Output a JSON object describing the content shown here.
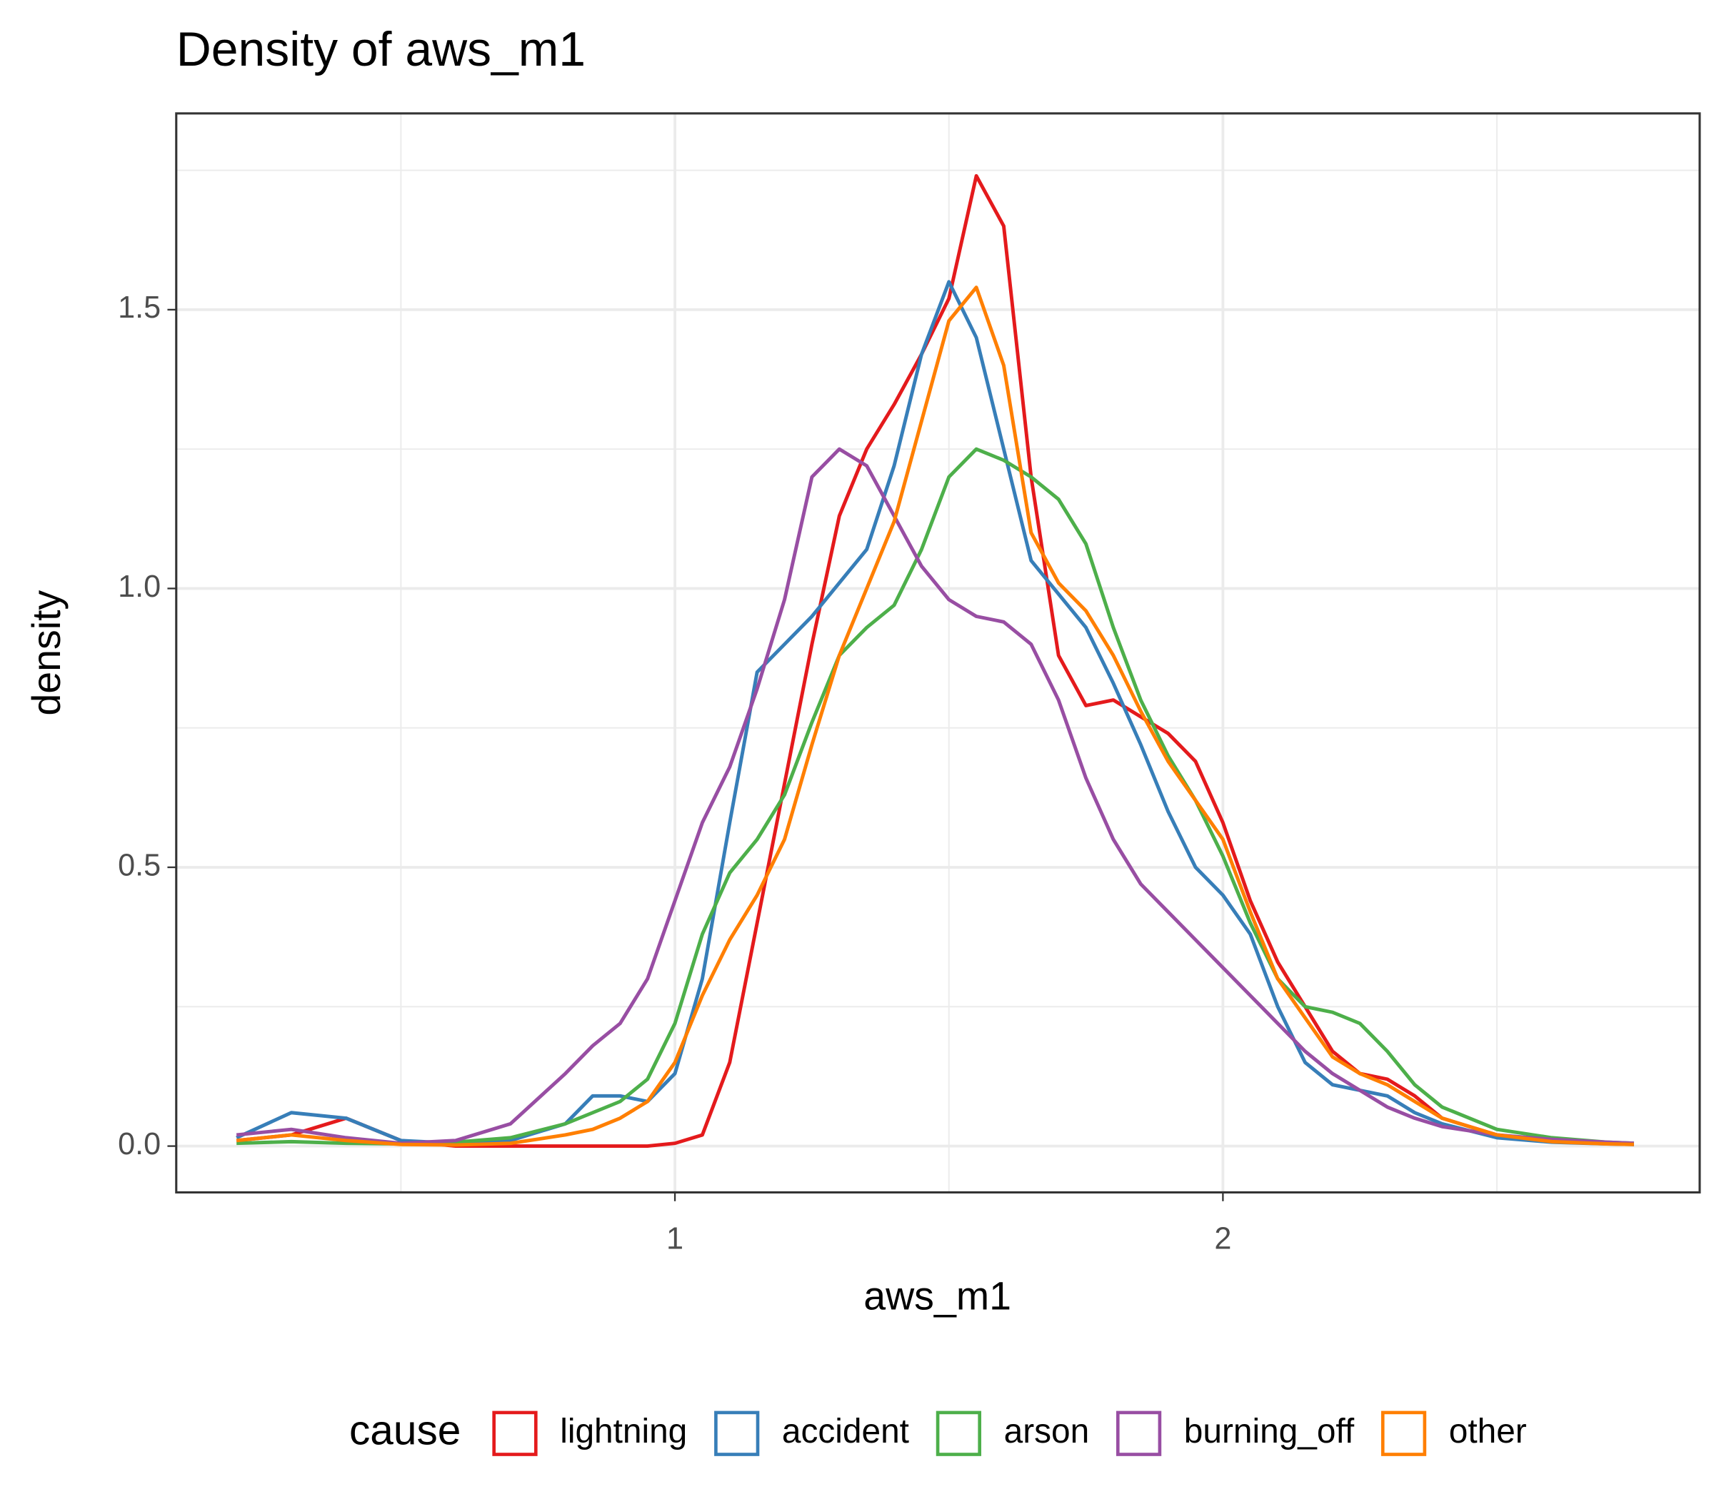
{
  "chart_data": {
    "type": "line",
    "title": "Density of aws_m1",
    "xlabel": "aws_m1",
    "ylabel": "density",
    "legend_title": "cause",
    "legend_position": "bottom",
    "grid": true,
    "minor_grid": true,
    "xlim": [
      0.09,
      2.87
    ],
    "ylim": [
      -0.083,
      1.852
    ],
    "xticks": [
      1,
      2
    ],
    "yticks": [
      {
        "value": 0,
        "label": "0.0"
      },
      {
        "value": 0.5,
        "label": "0.5"
      },
      {
        "value": 1,
        "label": "1.0"
      },
      {
        "value": 1.5,
        "label": "1.5"
      }
    ],
    "x": [
      0.2,
      0.3,
      0.4,
      0.5,
      0.6,
      0.7,
      0.8,
      0.85,
      0.9,
      0.95,
      1.0,
      1.05,
      1.1,
      1.15,
      1.2,
      1.25,
      1.3,
      1.35,
      1.4,
      1.45,
      1.5,
      1.55,
      1.6,
      1.65,
      1.7,
      1.75,
      1.8,
      1.85,
      1.9,
      1.95,
      2.0,
      2.05,
      2.1,
      2.15,
      2.2,
      2.25,
      2.3,
      2.35,
      2.4,
      2.5,
      2.6,
      2.7,
      2.75
    ],
    "series": [
      {
        "name": "lightning",
        "color": "#e41a1c",
        "values": [
          0.01,
          0.02,
          0.05,
          0.01,
          0,
          0,
          0,
          0,
          0,
          0,
          0.005,
          0.02,
          0.15,
          0.4,
          0.65,
          0.9,
          1.13,
          1.25,
          1.33,
          1.42,
          1.52,
          1.74,
          1.65,
          1.2,
          0.88,
          0.79,
          0.8,
          0.77,
          0.74,
          0.69,
          0.58,
          0.44,
          0.33,
          0.25,
          0.17,
          0.13,
          0.12,
          0.09,
          0.05,
          0.02,
          0.01,
          0.005,
          0.003
        ]
      },
      {
        "name": "accident",
        "color": "#377eb8",
        "values": [
          0.015,
          0.06,
          0.05,
          0.01,
          0.005,
          0.01,
          0.04,
          0.09,
          0.09,
          0.08,
          0.13,
          0.3,
          0.58,
          0.85,
          0.9,
          0.95,
          1.01,
          1.07,
          1.22,
          1.42,
          1.55,
          1.45,
          1.25,
          1.05,
          0.99,
          0.93,
          0.83,
          0.72,
          0.6,
          0.5,
          0.45,
          0.38,
          0.25,
          0.15,
          0.11,
          0.1,
          0.09,
          0.06,
          0.04,
          0.015,
          0.007,
          0.004,
          0.003
        ]
      },
      {
        "name": "arson",
        "color": "#4daf4a",
        "values": [
          0.005,
          0.008,
          0.005,
          0.004,
          0.007,
          0.015,
          0.04,
          0.06,
          0.08,
          0.12,
          0.22,
          0.38,
          0.49,
          0.55,
          0.63,
          0.76,
          0.88,
          0.93,
          0.97,
          1.07,
          1.2,
          1.25,
          1.23,
          1.2,
          1.16,
          1.08,
          0.93,
          0.8,
          0.7,
          0.62,
          0.52,
          0.4,
          0.3,
          0.25,
          0.24,
          0.22,
          0.17,
          0.11,
          0.07,
          0.03,
          0.015,
          0.007,
          0.005
        ]
      },
      {
        "name": "burning_off",
        "color": "#984ea3",
        "values": [
          0.02,
          0.03,
          0.015,
          0.005,
          0.01,
          0.04,
          0.13,
          0.18,
          0.22,
          0.3,
          0.44,
          0.58,
          0.68,
          0.82,
          0.98,
          1.2,
          1.25,
          1.22,
          1.13,
          1.04,
          0.98,
          0.95,
          0.94,
          0.9,
          0.8,
          0.66,
          0.55,
          0.47,
          0.42,
          0.37,
          0.32,
          0.27,
          0.22,
          0.17,
          0.13,
          0.1,
          0.07,
          0.05,
          0.035,
          0.02,
          0.012,
          0.007,
          0.005
        ]
      },
      {
        "name": "other",
        "color": "#ff7f00",
        "values": [
          0.01,
          0.02,
          0.01,
          0.003,
          0.002,
          0.005,
          0.02,
          0.03,
          0.05,
          0.08,
          0.15,
          0.27,
          0.37,
          0.45,
          0.55,
          0.72,
          0.88,
          1.0,
          1.12,
          1.3,
          1.48,
          1.54,
          1.4,
          1.1,
          1.01,
          0.96,
          0.88,
          0.78,
          0.69,
          0.62,
          0.55,
          0.42,
          0.3,
          0.23,
          0.16,
          0.13,
          0.11,
          0.08,
          0.05,
          0.02,
          0.008,
          0.004,
          0.003
        ]
      }
    ]
  }
}
